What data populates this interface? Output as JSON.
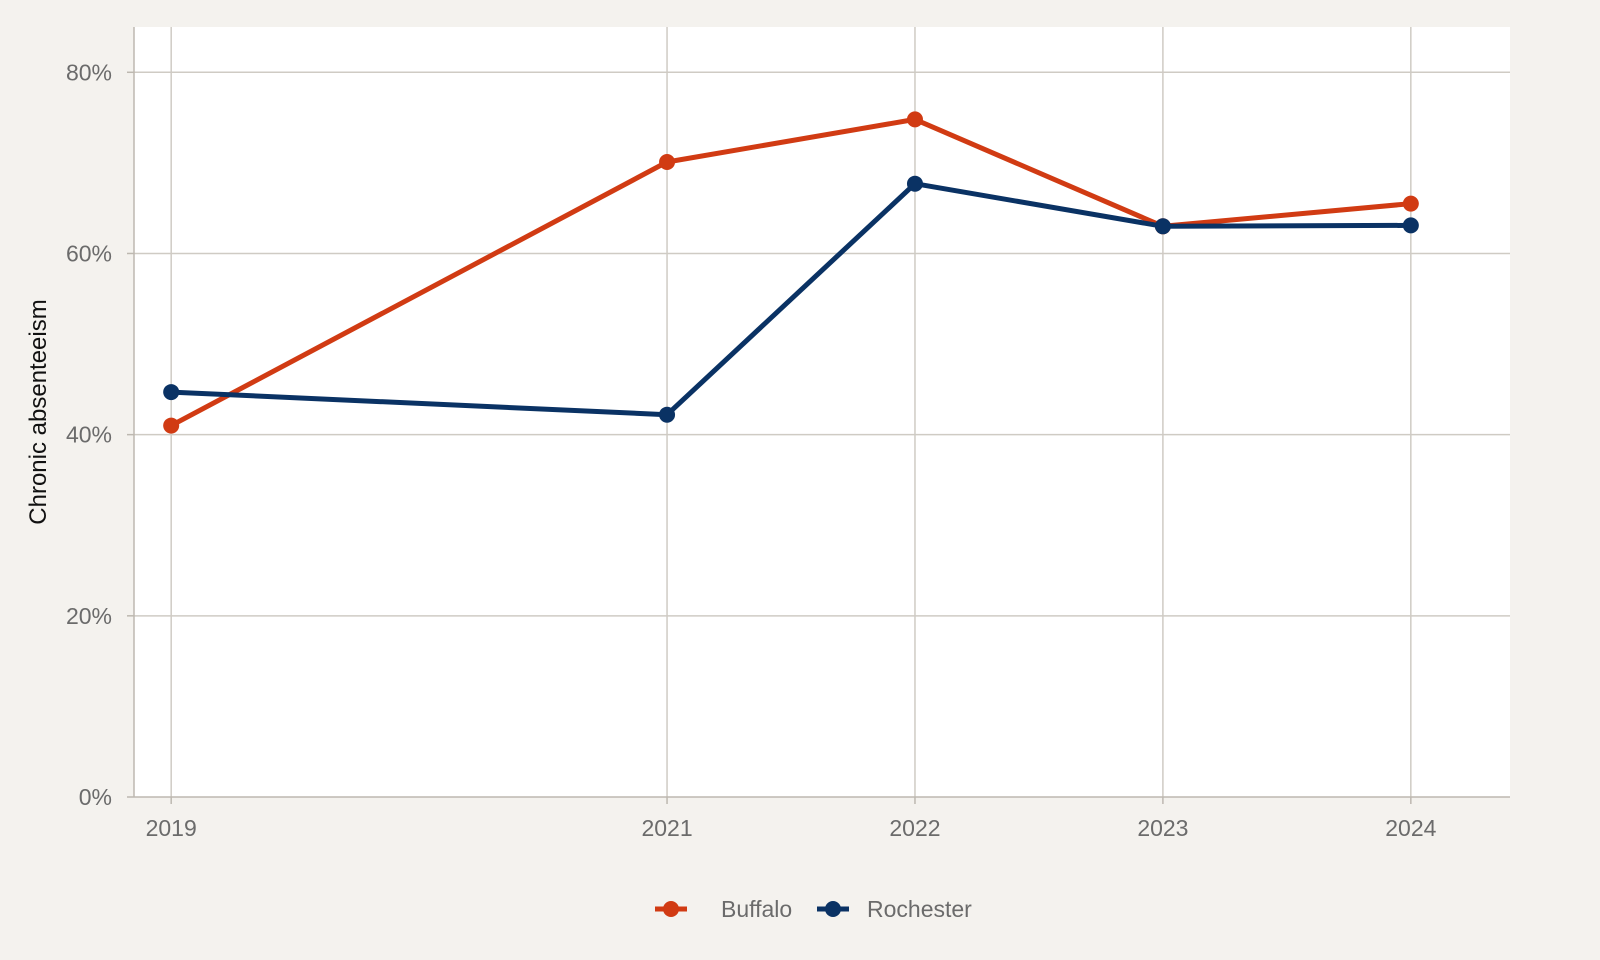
{
  "chart_data": {
    "type": "line",
    "title": "",
    "xlabel": "",
    "ylabel": "Chronic absenteeism",
    "x": [
      2019,
      2021,
      2022,
      2023,
      2024
    ],
    "x_tick_labels": [
      "2019",
      "2021",
      "2022",
      "2023",
      "2024"
    ],
    "y_ticks": [
      0,
      20,
      40,
      60,
      80
    ],
    "y_tick_labels": [
      "0%",
      "20%",
      "40%",
      "60%",
      "80%"
    ],
    "xlim": [
      2018.85,
      2024.4
    ],
    "ylim": [
      0,
      85
    ],
    "grid": true,
    "legend_position": "bottom",
    "series": [
      {
        "name": "Buffalo",
        "color": "#d13b13",
        "values": [
          41.0,
          70.1,
          74.8,
          63.0,
          65.5
        ]
      },
      {
        "name": "Rochester",
        "color": "#0a3264",
        "values": [
          44.7,
          42.2,
          67.7,
          63.0,
          63.1
        ]
      }
    ]
  }
}
